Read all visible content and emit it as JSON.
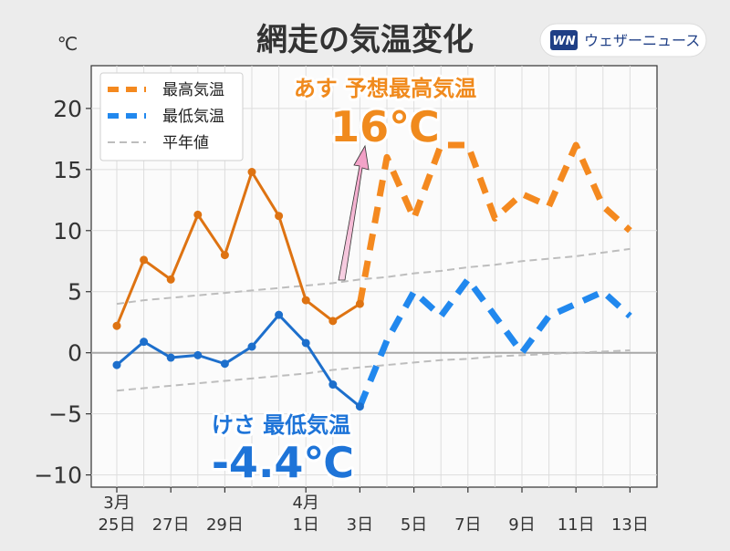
{
  "colors": {
    "max_past": "#de7312",
    "max_forecast": "#f4891f",
    "min_past": "#1d6fcc",
    "min_forecast": "#2188ee",
    "normal": "#bdbdbd",
    "brand": "#1f3f86"
  },
  "brand": {
    "logo_letters": "WN",
    "name": "ウェザーニュース"
  },
  "chart_data": {
    "type": "line",
    "title": "網走の気温変化",
    "ylabel": "℃",
    "ylim": [
      -11,
      23.5
    ],
    "xlim": [
      -1,
      20
    ],
    "grid": true,
    "y_ticks": [
      {
        "v": 20,
        "label": "20"
      },
      {
        "v": 15,
        "label": "15"
      },
      {
        "v": 10,
        "label": "10"
      },
      {
        "v": 5,
        "label": "5"
      },
      {
        "v": 0,
        "label": "0"
      },
      {
        "v": -5,
        "label": "−5"
      },
      {
        "v": -10,
        "label": "−10"
      }
    ],
    "x_ticks": [
      {
        "i": 0,
        "top": "3月",
        "bottom": "25日"
      },
      {
        "i": 2,
        "top": "",
        "bottom": "27日"
      },
      {
        "i": 4,
        "top": "",
        "bottom": "29日"
      },
      {
        "i": 7,
        "top": "4月",
        "bottom": "1日"
      },
      {
        "i": 9,
        "top": "",
        "bottom": "3日"
      },
      {
        "i": 11,
        "top": "",
        "bottom": "5日"
      },
      {
        "i": 13,
        "top": "",
        "bottom": "7日"
      },
      {
        "i": 15,
        "top": "",
        "bottom": "9日"
      },
      {
        "i": 17,
        "top": "",
        "bottom": "11日"
      },
      {
        "i": 19,
        "top": "",
        "bottom": "13日"
      }
    ],
    "legend": [
      {
        "key": "max",
        "label": "最高気温"
      },
      {
        "key": "min",
        "label": "最低気温"
      },
      {
        "key": "normal",
        "label": "平年値"
      }
    ],
    "series": [
      {
        "name": "最高気温",
        "key": "max",
        "split_index": 9,
        "values": [
          2.2,
          7.6,
          6.0,
          11.3,
          8.0,
          14.8,
          11.2,
          4.3,
          2.6,
          4.0,
          16.0,
          11.0,
          17.0,
          17.0,
          11.0,
          13.0,
          12.0,
          17.0,
          12.0,
          10.0
        ]
      },
      {
        "name": "最低気温",
        "key": "min",
        "split_index": 9,
        "values": [
          -1.0,
          0.9,
          -0.4,
          -0.2,
          -0.9,
          0.5,
          3.1,
          0.8,
          -2.6,
          -4.4,
          1.0,
          5.0,
          3.0,
          6.0,
          3.0,
          0.0,
          3.0,
          4.0,
          5.0,
          3.0
        ]
      },
      {
        "name": "平年値(最高)",
        "key": "normal",
        "values": [
          4.0,
          4.3,
          4.5,
          4.7,
          4.9,
          5.1,
          5.3,
          5.5,
          5.7,
          6.0,
          6.2,
          6.5,
          6.7,
          7.0,
          7.2,
          7.5,
          7.7,
          7.9,
          8.2,
          8.5
        ]
      },
      {
        "name": "平年値(最低)",
        "key": "normal",
        "values": [
          -3.1,
          -2.9,
          -2.7,
          -2.5,
          -2.3,
          -2.1,
          -1.9,
          -1.7,
          -1.4,
          -1.2,
          -1.0,
          -0.8,
          -0.6,
          -0.5,
          -0.3,
          -0.2,
          -0.1,
          0.0,
          0.1,
          0.2
        ]
      }
    ],
    "annotations": {
      "high": {
        "sub": "あす 予想最高気温",
        "value": "16℃"
      },
      "low": {
        "sub": "けさ 最低気温",
        "value": "-4.4℃"
      }
    }
  }
}
